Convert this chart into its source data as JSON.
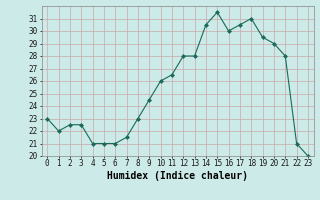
{
  "xlabel": "Humidex (Indice chaleur)",
  "x": [
    0,
    1,
    2,
    3,
    4,
    5,
    6,
    7,
    8,
    9,
    10,
    11,
    12,
    13,
    14,
    15,
    16,
    17,
    18,
    19,
    20,
    21,
    22,
    23
  ],
  "y": [
    23.0,
    22.0,
    22.5,
    22.5,
    21.0,
    21.0,
    21.0,
    21.5,
    23.0,
    24.5,
    26.0,
    26.5,
    28.0,
    28.0,
    30.5,
    31.5,
    30.0,
    30.5,
    31.0,
    29.5,
    29.0,
    28.0,
    21.0,
    20.0
  ],
  "ylim": [
    20,
    32
  ],
  "yticks": [
    20,
    21,
    22,
    23,
    24,
    25,
    26,
    27,
    28,
    29,
    30,
    31
  ],
  "xticks": [
    0,
    1,
    2,
    3,
    4,
    5,
    6,
    7,
    8,
    9,
    10,
    11,
    12,
    13,
    14,
    15,
    16,
    17,
    18,
    19,
    20,
    21,
    22,
    23
  ],
  "line_color": "#1a6b5a",
  "marker": "D",
  "marker_size": 2.0,
  "bg_color": "#cceae7",
  "grid_color_minor": "#c8a8a8",
  "grid_color_major": "#c8a8a8",
  "tick_fontsize": 5.5,
  "label_fontsize": 7.0,
  "spine_color": "#888888"
}
